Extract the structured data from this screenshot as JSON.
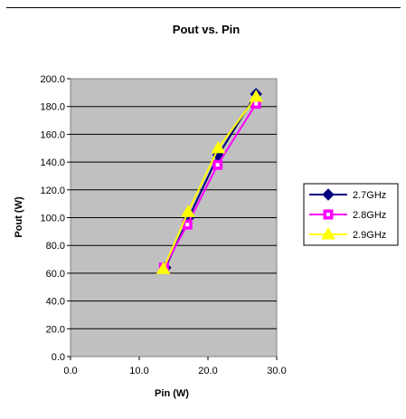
{
  "chart_data": {
    "type": "line",
    "title": "Pout vs. Pin",
    "xlabel": "Pin (W)",
    "ylabel": "Pout (W)",
    "xlim": [
      0,
      30
    ],
    "ylim": [
      0,
      200
    ],
    "x_ticks": [
      "0.0",
      "10.0",
      "20.0",
      "30.0"
    ],
    "y_ticks": [
      "0.0",
      "20.0",
      "40.0",
      "60.0",
      "80.0",
      "100.0",
      "120.0",
      "140.0",
      "160.0",
      "180.0",
      "200.0"
    ],
    "grid": "horizontal",
    "plot_background": "#c0c0c0",
    "legend_position": "right",
    "series": [
      {
        "name": "2.7GHz",
        "color": "#000080",
        "marker": "diamond",
        "x": [
          13.8,
          17.2,
          21.5,
          27.0
        ],
        "y": [
          64,
          100,
          145,
          189
        ]
      },
      {
        "name": "2.8GHz",
        "color": "#ff00ff",
        "marker": "square",
        "x": [
          13.6,
          17.0,
          21.4,
          27.0
        ],
        "y": [
          64,
          95,
          138,
          182
        ]
      },
      {
        "name": "2.9GHz",
        "color": "#ffff00",
        "marker": "triangle",
        "x": [
          13.5,
          17.1,
          21.5,
          27.0
        ],
        "y": [
          63,
          104,
          150,
          187
        ]
      }
    ]
  }
}
